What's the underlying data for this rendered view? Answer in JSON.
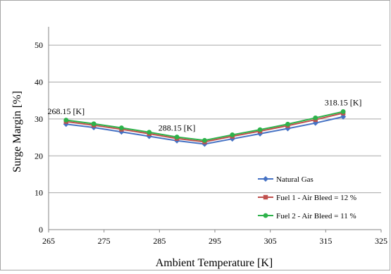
{
  "chart_data": {
    "type": "line",
    "title": "",
    "xlabel": "Ambient Temperature  [K]",
    "ylabel": "Surge Margin  [%]",
    "xlim": [
      265,
      325
    ],
    "ylim": [
      0,
      55
    ],
    "xticks": [
      265,
      275,
      285,
      295,
      305,
      315,
      325
    ],
    "yticks": [
      0,
      10,
      20,
      30,
      40,
      50
    ],
    "grid": "horizontal",
    "legend_position": "bottom-right",
    "x": [
      268.15,
      273.15,
      278.15,
      283.15,
      288.15,
      293.15,
      298.15,
      303.15,
      308.15,
      313.15,
      318.15
    ],
    "series": [
      {
        "name": "Natural Gas",
        "color": "#4572c4",
        "marker": "diamond",
        "values": [
          28.6,
          27.7,
          26.5,
          25.3,
          24.1,
          23.2,
          24.6,
          26.0,
          27.4,
          28.9,
          30.6
        ]
      },
      {
        "name": "Fuel 1 - Air Bleed = 12 %",
        "color": "#c0504d",
        "marker": "square",
        "values": [
          29.3,
          28.3,
          27.2,
          26.0,
          24.7,
          23.8,
          25.3,
          26.7,
          28.2,
          29.8,
          31.6
        ]
      },
      {
        "name": "Fuel 2 - Air Bleed = 11 %",
        "color": "#2db24a",
        "marker": "circle",
        "values": [
          29.7,
          28.7,
          27.6,
          26.4,
          25.1,
          24.2,
          25.7,
          27.1,
          28.6,
          30.3,
          32.0
        ]
      }
    ],
    "annotations": [
      {
        "text": "268.15 [K]",
        "x": 268.15,
        "y": 31.3
      },
      {
        "text": "288.15 [K]",
        "x": 288.15,
        "y": 26.8
      },
      {
        "text": "318.15 [K]",
        "x": 318.15,
        "y": 33.7
      }
    ]
  }
}
